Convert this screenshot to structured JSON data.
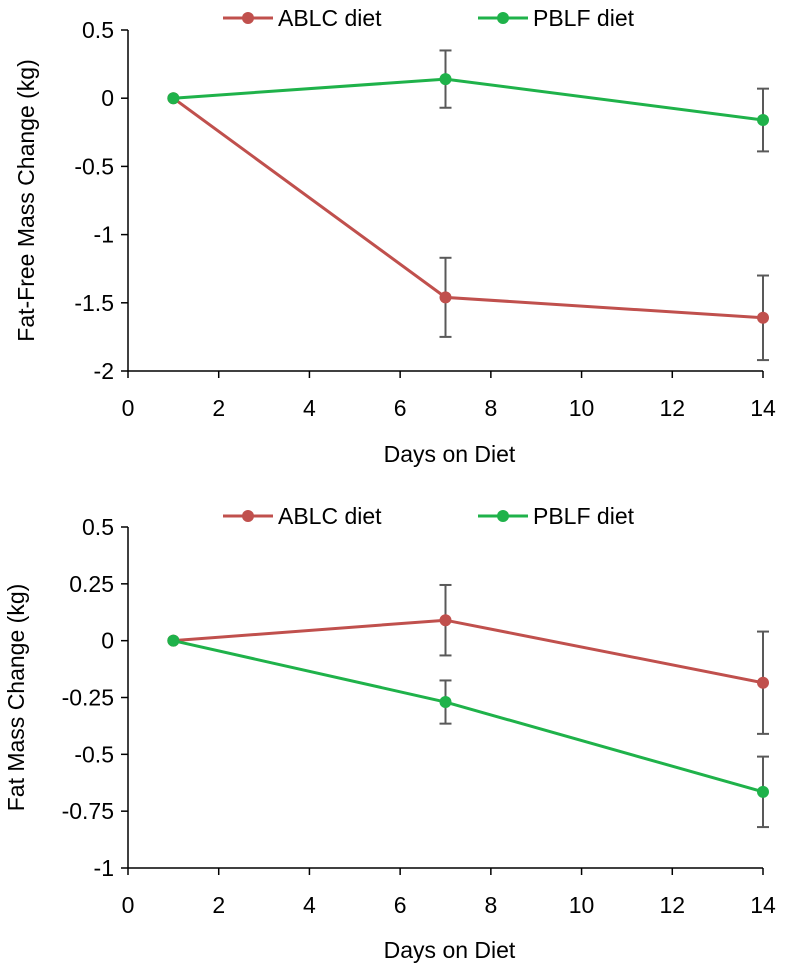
{
  "chart_data": [
    {
      "type": "line",
      "title": "",
      "xlabel": "Days on Diet",
      "ylabel": "Fat-Free Mass Change (kg)",
      "xlim": [
        0,
        14
      ],
      "ylim": [
        -2,
        0.5
      ],
      "x_ticks": [
        0,
        2,
        4,
        6,
        8,
        10,
        12,
        14
      ],
      "y_ticks": [
        0.5,
        0,
        -0.5,
        -1,
        -1.5,
        -2
      ],
      "y_tick_labels": [
        "0.5",
        "0",
        "-0.5",
        "-1",
        "-1.5",
        "-2"
      ],
      "grid": false,
      "legend_position": "top",
      "series": [
        {
          "name": "ABLC diet",
          "color": "#c0504d",
          "x": [
            1,
            7,
            14
          ],
          "values": [
            0,
            -1.46,
            -1.61
          ],
          "error": [
            0,
            0.29,
            0.31
          ]
        },
        {
          "name": "PBLF diet",
          "color": "#1fb24a",
          "x": [
            1,
            7,
            14
          ],
          "values": [
            0,
            0.14,
            -0.16
          ],
          "error": [
            0,
            0.21,
            0.23
          ]
        }
      ]
    },
    {
      "type": "line",
      "title": "",
      "xlabel": "Days on Diet",
      "ylabel": "Fat Mass Change (kg)",
      "xlim": [
        0,
        14
      ],
      "ylim": [
        -1,
        0.5
      ],
      "x_ticks": [
        0,
        2,
        4,
        6,
        8,
        10,
        12,
        14
      ],
      "y_ticks": [
        0.5,
        0.25,
        0,
        -0.25,
        -0.5,
        -0.75,
        -1
      ],
      "y_tick_labels": [
        "0.5",
        "0.25",
        "0",
        "-0.25",
        "-0.5",
        "-0.75",
        "-1"
      ],
      "grid": false,
      "legend_position": "top",
      "series": [
        {
          "name": "ABLC diet",
          "color": "#c0504d",
          "x": [
            1,
            7,
            14
          ],
          "values": [
            0,
            0.09,
            -0.185
          ],
          "error": [
            0,
            0.155,
            0.225
          ]
        },
        {
          "name": "PBLF diet",
          "color": "#1fb24a",
          "x": [
            1,
            7,
            14
          ],
          "values": [
            0,
            -0.27,
            -0.665
          ],
          "error": [
            0,
            0.095,
            0.155
          ]
        }
      ]
    }
  ]
}
